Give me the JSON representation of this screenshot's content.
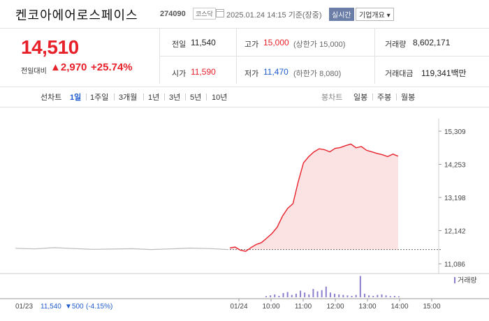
{
  "header": {
    "name": "켄코아에어로스페이스",
    "code": "274090",
    "market": "코스닥",
    "datetime": "2025.01.24 14:15 기준(장중)",
    "realtime": "실시간",
    "info_btn": "기업개요 ▾"
  },
  "summary": {
    "price": "14,510",
    "change_label": "전일대비",
    "change": "▲2,970",
    "change_pct": "+25.74%"
  },
  "stats": {
    "prev_label": "전일",
    "prev": "11,540",
    "high_label": "고가",
    "high": "15,000",
    "high_limit": "(상한가 15,000)",
    "volume_label": "거래량",
    "volume": "8,602,171",
    "open_label": "시가",
    "open": "11,590",
    "low_label": "저가",
    "low": "11,470",
    "low_limit": "(하한가 8,080)",
    "amount_label": "거래대금",
    "amount": "119,341백만"
  },
  "tabs": {
    "line_label": "선차트",
    "line_items": [
      "1일",
      "1주일",
      "3개월",
      "1년",
      "3년",
      "5년",
      "10년"
    ],
    "candle_label": "봉차트",
    "candle_items": [
      "일봉",
      "주봉",
      "월봉"
    ]
  },
  "chart_data": {
    "type": "line",
    "y_ticks": [
      "15,309",
      "14,253",
      "13,198",
      "12,142",
      "11,086"
    ],
    "y_tick_values": [
      15309,
      14253,
      13198,
      12142,
      11086
    ],
    "ylim": [
      11086,
      15309
    ],
    "x_ticks": [
      "01/24",
      "10:00",
      "11:00",
      "12:00",
      "13:00",
      "14:00",
      "15:00"
    ],
    "prev_close": 11540,
    "prev_day_series": [
      11580,
      11560,
      11600,
      11570,
      11545,
      11555,
      11565,
      11540,
      11560,
      11585,
      11570,
      11540
    ],
    "today": {
      "times": [
        "09:00",
        "09:10",
        "09:20",
        "09:30",
        "09:40",
        "09:50",
        "10:00",
        "10:10",
        "10:20",
        "10:30",
        "10:40",
        "10:50",
        "11:00",
        "11:10",
        "11:20",
        "11:30",
        "11:40",
        "11:50",
        "12:00",
        "12:10",
        "12:20",
        "12:30",
        "12:40",
        "12:50",
        "13:00",
        "13:10",
        "13:20",
        "13:30",
        "13:40",
        "13:50",
        "14:00",
        "14:10",
        "14:15"
      ],
      "values": [
        11590,
        11620,
        11520,
        11480,
        11600,
        11700,
        11760,
        11900,
        12050,
        12250,
        12600,
        12850,
        13000,
        13700,
        14300,
        14500,
        14650,
        14750,
        14720,
        14650,
        14760,
        14790,
        14850,
        14900,
        14780,
        14820,
        14700,
        14650,
        14600,
        14560,
        14500,
        14580,
        14510
      ]
    },
    "volume_label": "거래량",
    "volume_bars": [
      0.05,
      0.08,
      0.12,
      0.06,
      0.18,
      0.22,
      0.1,
      0.15,
      0.28,
      0.2,
      0.12,
      0.35,
      0.25,
      0.3,
      0.45,
      0.2,
      0.15,
      0.12,
      0.1,
      0.08,
      0.06,
      0.1,
      0.9,
      0.15,
      0.08,
      0.06,
      0.1,
      0.12,
      0.08,
      0.05,
      0.06,
      0.04
    ]
  },
  "footer": {
    "prev_date": "01/23",
    "prev_close": "11,540",
    "prev_change": "▼500",
    "prev_pct": "(-4.15%)"
  }
}
